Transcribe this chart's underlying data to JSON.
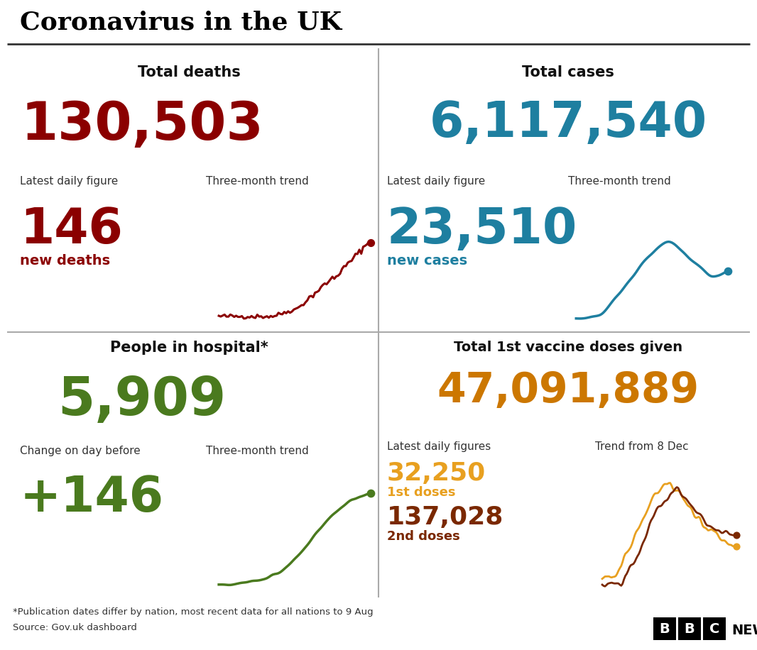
{
  "title": "Coronavirus in the UK",
  "bg_color": "#ffffff",
  "title_color": "#000000",
  "total_deaths": "130,503",
  "total_deaths_color": "#8b0000",
  "total_deaths_label": "Total deaths",
  "daily_deaths": "146",
  "daily_deaths_label": "new deaths",
  "daily_deaths_color": "#8b0000",
  "total_cases": "6,117,540",
  "total_cases_color": "#1e7fa0",
  "total_cases_label": "Total cases",
  "daily_cases": "23,510",
  "daily_cases_label": "new cases",
  "daily_cases_color": "#1e7fa0",
  "hospital": "5,909",
  "hospital_color": "#4a7a1e",
  "hospital_label": "People in hospital*",
  "hospital_change": "+146",
  "hospital_change_color": "#4a7a1e",
  "vaccine_total": "47,091,889",
  "vaccine_color": "#cc7700",
  "vaccine_label": "Total 1st vaccine doses given",
  "vaccine_daily_1st": "32,250",
  "vaccine_daily_1st_label": "1st doses",
  "vaccine_daily_1st_color": "#e8a020",
  "vaccine_daily_2nd": "137,028",
  "vaccine_daily_2nd_label": "2nd doses",
  "vaccine_daily_2nd_color": "#7a2800",
  "vaccine_trend_label": "Trend from 8 Dec",
  "vaccine_daily_label": "Latest daily figures",
  "footnote": "*Publication dates differ by nation, most recent data for all nations to 9 Aug",
  "source": "Source: Gov.uk dashboard",
  "label_color": "#333333"
}
